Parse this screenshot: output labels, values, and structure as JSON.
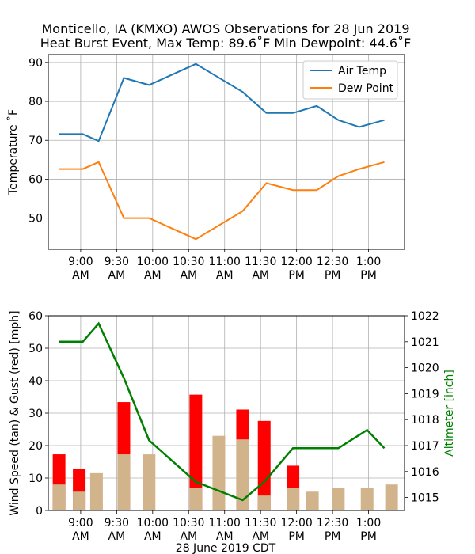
{
  "figure": {
    "title_line1": "Monticello, IA (KMXO) AWOS Observations for 28 Jun 2019",
    "title_line2": "Heat Burst Event, Max Temp: 89.6˚F Min Dewpoint: 44.6˚F",
    "xlabel": "28 June 2019 CDT",
    "time_ticks": [
      {
        "top": "9:00",
        "bottom": "AM",
        "t": 9.0
      },
      {
        "top": "9:30",
        "bottom": "AM",
        "t": 9.5
      },
      {
        "top": "10:00",
        "bottom": "AM",
        "t": 10.0
      },
      {
        "top": "10:30",
        "bottom": "AM",
        "t": 10.5
      },
      {
        "top": "11:00",
        "bottom": "AM",
        "t": 11.0
      },
      {
        "top": "11:30",
        "bottom": "AM",
        "t": 11.5
      },
      {
        "top": "12:00",
        "bottom": "PM",
        "t": 12.0
      },
      {
        "top": "12:30",
        "bottom": "PM",
        "t": 12.5
      },
      {
        "top": "1:00",
        "bottom": "PM",
        "t": 13.0
      }
    ]
  },
  "chart_data": [
    {
      "type": "line",
      "ylabel": "Temperature ˚F",
      "xlim": [
        8.55,
        13.5
      ],
      "ylim": [
        42,
        92
      ],
      "yticks": [
        50,
        60,
        70,
        80,
        90
      ],
      "grid": true,
      "legend": "top-right",
      "x": [
        8.7,
        9.03,
        9.25,
        9.6,
        9.95,
        10.6,
        11.25,
        11.58,
        11.95,
        12.28,
        12.58,
        12.87,
        13.22,
        13.55
      ],
      "series": [
        {
          "name": "Air Temp",
          "color": "#1f77b4",
          "values": [
            71.6,
            71.6,
            69.8,
            86.0,
            84.2,
            89.6,
            82.4,
            77.0,
            77.0,
            78.8,
            75.2,
            73.4,
            75.2,
            null
          ]
        },
        {
          "name": "Dew Point",
          "color": "#ff7f0e",
          "values": [
            62.6,
            62.6,
            64.4,
            50.0,
            50.0,
            44.6,
            51.8,
            59.0,
            57.2,
            57.2,
            60.8,
            62.6,
            64.4,
            null
          ]
        }
      ]
    },
    {
      "type": "bar",
      "ylabel": "Wind Speed (tan) & Gust (red) [mph]",
      "ylabel_right": "Altimeter [inch]",
      "xlim": [
        8.55,
        13.5
      ],
      "ylim": [
        0,
        60
      ],
      "yticks": [
        0,
        10,
        20,
        30,
        40,
        50,
        60
      ],
      "ylim_right": [
        1014.5,
        1022.0
      ],
      "yticks_right": [
        1015,
        1016,
        1017,
        1018,
        1019,
        1020,
        1021,
        1022
      ],
      "grid": true,
      "x": [
        8.7,
        8.98,
        9.22,
        9.6,
        9.95,
        10.6,
        10.92,
        11.25,
        11.55,
        11.95,
        12.22,
        12.58,
        12.98,
        13.32
      ],
      "series": [
        {
          "color": "#d2b48c",
          "values": [
            8.0,
            5.8,
            11.5,
            17.3,
            17.3,
            6.9,
            23.0,
            21.9,
            4.6,
            6.9,
            5.8,
            6.9,
            6.9,
            8.0
          ]
        },
        {
          "color": "#ff0000",
          "values": [
            17.3,
            12.7,
            null,
            33.4,
            null,
            35.7,
            null,
            31.1,
            27.6,
            13.8,
            null,
            null,
            null,
            null
          ]
        },
        {
          "color": "#008000",
          "x": [
            8.7,
            9.03,
            9.25,
            9.6,
            9.95,
            10.6,
            11.25,
            11.55,
            11.95,
            12.58,
            12.98,
            13.22
          ],
          "values": [
            1021.0,
            1021.0,
            1021.7,
            1019.6,
            1017.2,
            1015.6,
            1014.9,
            1015.6,
            1016.9,
            1016.9,
            1017.6,
            1016.9
          ]
        }
      ]
    }
  ]
}
